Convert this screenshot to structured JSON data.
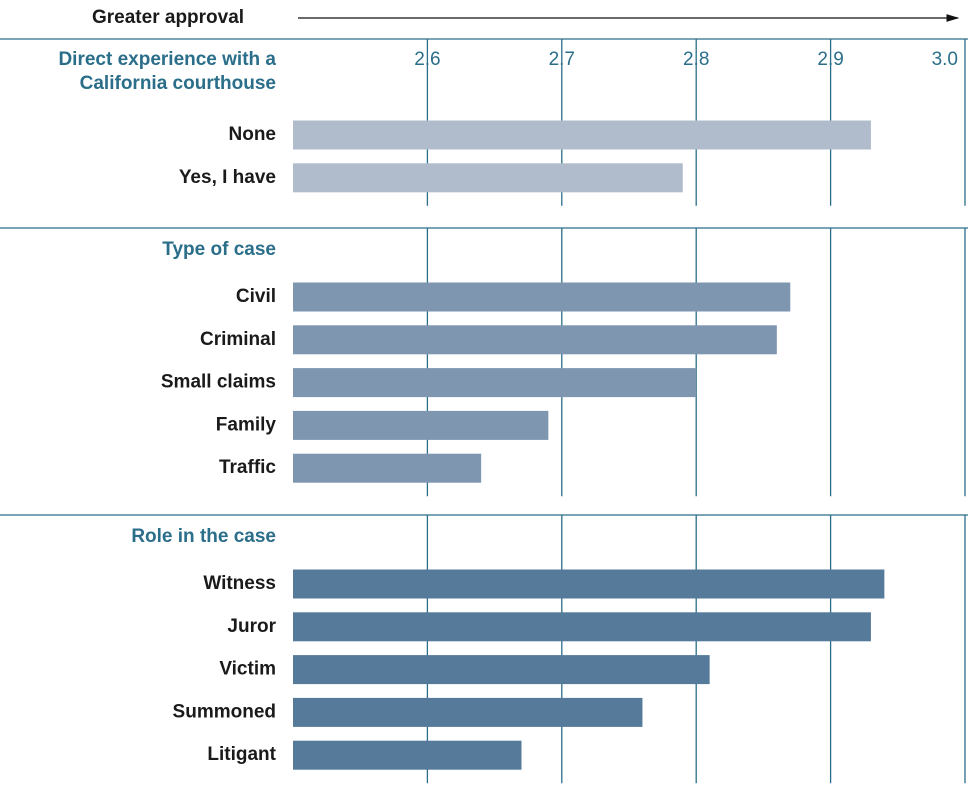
{
  "chart_data": {
    "type": "bar",
    "orientation": "horizontal",
    "title": "Greater approval",
    "xlim": [
      2.5,
      3.0
    ],
    "xticks": [
      2.6,
      2.7,
      2.8,
      2.9,
      {
        "value": 3,
        "label": "3.0"
      }
    ],
    "grid": true,
    "groups": [
      {
        "name": "Direct experience with a California courthouse",
        "color": "#b0bccb",
        "categories": [
          "None",
          "Yes, I have"
        ],
        "values": [
          2.93,
          2.79
        ]
      },
      {
        "name": "Type of case",
        "color": "#7f96b0",
        "categories": [
          "Civil",
          "Criminal",
          "Small claims",
          "Family",
          "Traffic"
        ],
        "values": [
          2.87,
          2.86,
          2.8,
          2.69,
          2.64
        ]
      },
      {
        "name": "Role in the case",
        "color": "#557a9a",
        "categories": [
          "Witness",
          "Juror",
          "Victim",
          "Summoned",
          "Litigant"
        ],
        "values": [
          2.94,
          2.93,
          2.81,
          2.76,
          2.67
        ]
      }
    ]
  }
}
